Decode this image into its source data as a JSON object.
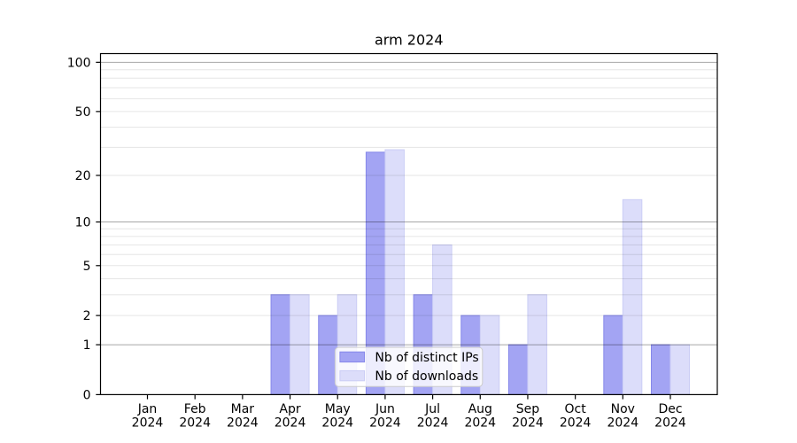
{
  "page": {
    "background": "#ffffff"
  },
  "chart_data": {
    "type": "bar",
    "title": "arm 2024",
    "categories": [
      "Jan",
      "Feb",
      "Mar",
      "Apr",
      "May",
      "Jun",
      "Jul",
      "Aug",
      "Sep",
      "Oct",
      "Nov",
      "Dec"
    ],
    "x_tick_second_line": "2024",
    "series": [
      {
        "name": "Nb of distinct IPs",
        "values": [
          0,
          0,
          0,
          3,
          2,
          28,
          3,
          2,
          1,
          0,
          2,
          1
        ],
        "fill": "#a3a4f3",
        "edge": "#8688ea"
      },
      {
        "name": "Nb of downloads",
        "values": [
          0,
          0,
          0,
          3,
          3,
          29,
          7,
          2,
          3,
          0,
          14,
          1
        ],
        "fill": "#dcddfa",
        "edge": "#cbcdf5"
      }
    ],
    "yscale": "log1p",
    "ylim": [
      0,
      113
    ],
    "y_tick_values": [
      0,
      1,
      2,
      5,
      10,
      20,
      50,
      100
    ],
    "y_tick_labels": [
      "0",
      "1",
      "2",
      "5",
      "10",
      "20",
      "50",
      "100"
    ],
    "y_major_gridlines": [
      1,
      10,
      100
    ],
    "y_minor_gridlines": [
      2,
      3,
      4,
      5,
      6,
      7,
      8,
      9,
      20,
      30,
      40,
      50,
      60,
      70,
      80,
      90
    ],
    "grid": true,
    "legend_position": "lower center",
    "colors": {
      "major_grid": "rgba(0,0,0,0.35)",
      "minor_grid": "rgba(0,0,0,0.10)",
      "axis": "#000000",
      "text": "#000000",
      "legend_border": "#cccccc",
      "legend_bg_rgba": "255,255,255,0.8"
    }
  }
}
